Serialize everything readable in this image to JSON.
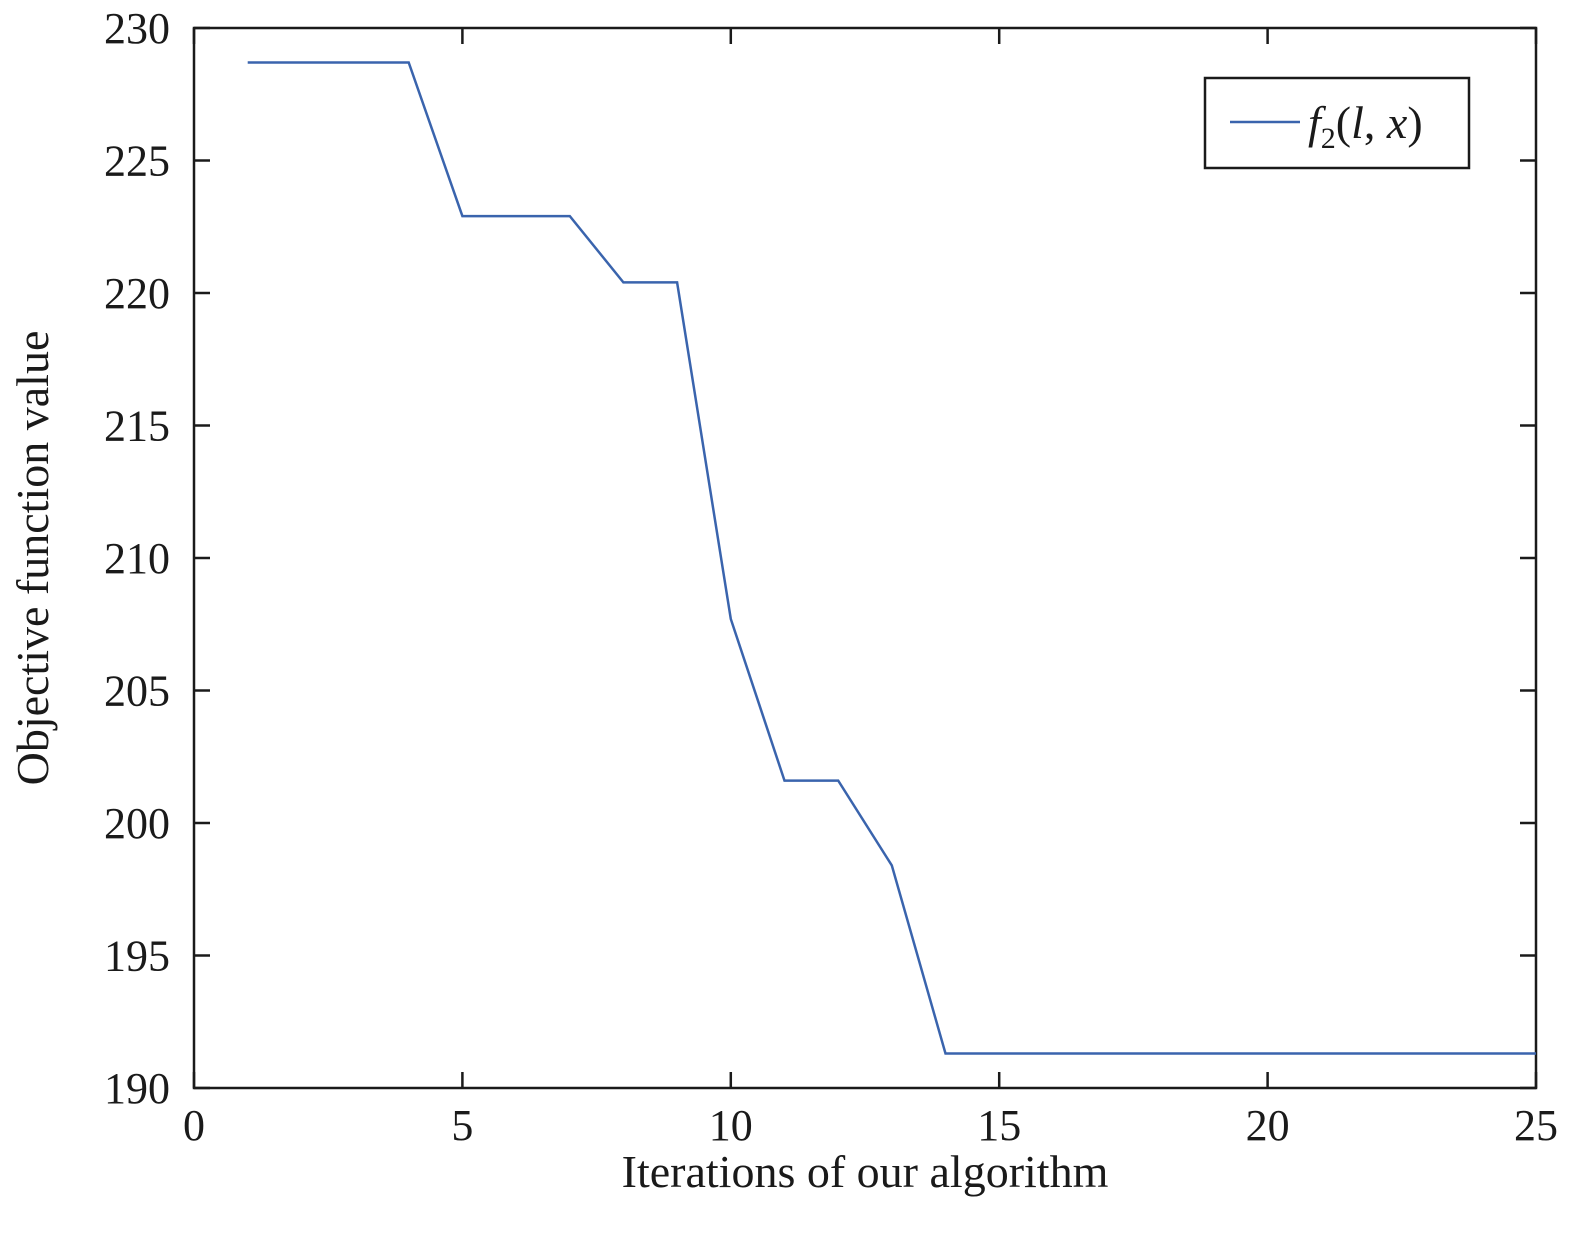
{
  "chart_data": {
    "type": "line",
    "xlabel": "Iterations of our algorithm",
    "ylabel": "Objective function value",
    "xlim": [
      0,
      25
    ],
    "ylim": [
      190,
      230
    ],
    "xticks": [
      "0",
      "5",
      "10",
      "15",
      "20",
      "25"
    ],
    "yticks": [
      "190",
      "195",
      "200",
      "205",
      "210",
      "215",
      "220",
      "225",
      "230"
    ],
    "grid": false,
    "legend": {
      "placement": "top-right",
      "entries": [
        {
          "name_prefix": "f",
          "name_subscript": "2",
          "name_args_open": "(",
          "name_arg1": "l",
          "name_sep": ", ",
          "name_arg2": "x",
          "name_args_close": ")"
        }
      ]
    },
    "series": [
      {
        "name": "f2(l, x)",
        "color": "#3a64ad",
        "x": [
          1,
          2,
          3,
          4,
          5,
          6,
          7,
          8,
          9,
          10,
          11,
          12,
          13,
          14,
          15,
          16,
          17,
          18,
          19,
          20,
          21,
          22,
          23,
          24,
          25
        ],
        "y": [
          228.7,
          228.7,
          228.7,
          228.7,
          222.9,
          222.9,
          222.9,
          220.4,
          220.4,
          207.7,
          201.6,
          201.6,
          198.4,
          191.3,
          191.3,
          191.3,
          191.3,
          191.3,
          191.3,
          191.3,
          191.3,
          191.3,
          191.3,
          191.3,
          191.3
        ]
      }
    ]
  }
}
